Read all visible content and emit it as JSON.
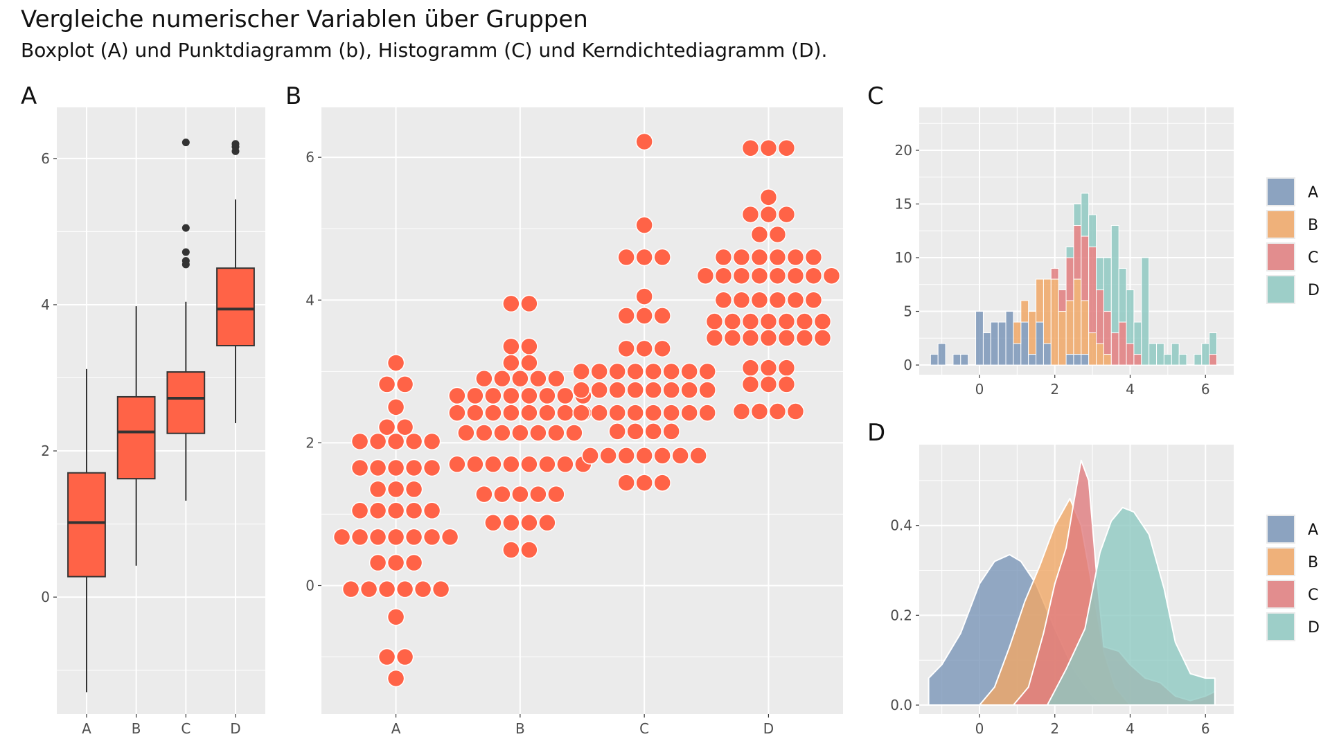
{
  "title": "Vergleiche numerischer Variablen über Gruppen",
  "subtitle": "Boxplot (A) und Punktdiagramm (b), Histogramm (C) und Kerndichtediagramm (D).",
  "colors": {
    "panel_bg": "#ebebeb",
    "grid": "#ffffff",
    "tomato": "#ff6347",
    "box_line": "#333333",
    "axis_text": "#4d4d4d",
    "groups": {
      "A": "#7b96b8",
      "B": "#f0a766",
      "C": "#e07c7e",
      "D": "#8fc9c2"
    }
  },
  "chart_data": [
    {
      "panel_tag": "A",
      "type": "box",
      "categories": [
        "A",
        "B",
        "C",
        "D"
      ],
      "ylim": [
        -1.6,
        6.7
      ],
      "yticks": [
        0,
        2,
        4,
        6
      ],
      "boxes": [
        {
          "group": "A",
          "whisker_low": -1.3,
          "q1": 0.28,
          "median": 1.02,
          "q3": 1.7,
          "whisker_high": 3.12,
          "outliers": []
        },
        {
          "group": "B",
          "whisker_low": 0.43,
          "q1": 1.62,
          "median": 2.26,
          "q3": 2.74,
          "whisker_high": 3.98,
          "outliers": []
        },
        {
          "group": "C",
          "whisker_low": 1.32,
          "q1": 2.24,
          "median": 2.72,
          "q3": 3.08,
          "whisker_high": 4.04,
          "outliers": [
            4.55,
            4.6,
            4.72,
            5.05,
            6.22
          ]
        },
        {
          "group": "D",
          "whisker_low": 2.38,
          "q1": 3.44,
          "median": 3.94,
          "q3": 4.5,
          "whisker_high": 5.44,
          "outliers": [
            6.1,
            6.16,
            6.2
          ]
        }
      ]
    },
    {
      "panel_tag": "B",
      "type": "scatter",
      "categories": [
        "A",
        "B",
        "C",
        "D"
      ],
      "ylim": [
        -1.8,
        6.7
      ],
      "yticks": [
        0,
        2,
        4,
        6
      ],
      "groups": [
        {
          "group": "A",
          "rows": [
            {
              "y": 3.12,
              "n": 1
            },
            {
              "y": 2.82,
              "n": 2
            },
            {
              "y": 2.5,
              "n": 1
            },
            {
              "y": 2.22,
              "n": 2
            },
            {
              "y": 2.02,
              "n": 5
            },
            {
              "y": 1.65,
              "n": 5
            },
            {
              "y": 1.35,
              "n": 3
            },
            {
              "y": 1.05,
              "n": 5
            },
            {
              "y": 0.68,
              "n": 7
            },
            {
              "y": 0.32,
              "n": 3
            },
            {
              "y": -0.05,
              "n": 6
            },
            {
              "y": -0.44,
              "n": 1
            },
            {
              "y": -1.0,
              "n": 2
            },
            {
              "y": -1.3,
              "n": 1
            }
          ]
        },
        {
          "group": "B",
          "rows": [
            {
              "y": 3.95,
              "n": 2
            },
            {
              "y": 3.35,
              "n": 2
            },
            {
              "y": 3.12,
              "n": 2
            },
            {
              "y": 2.9,
              "n": 5
            },
            {
              "y": 2.66,
              "n": 8
            },
            {
              "y": 2.42,
              "n": 8
            },
            {
              "y": 2.14,
              "n": 7
            },
            {
              "y": 1.7,
              "n": 8
            },
            {
              "y": 1.28,
              "n": 5
            },
            {
              "y": 0.88,
              "n": 4
            },
            {
              "y": 0.5,
              "n": 2
            }
          ]
        },
        {
          "group": "C",
          "rows": [
            {
              "y": 6.22,
              "n": 1
            },
            {
              "y": 5.05,
              "n": 1
            },
            {
              "y": 4.6,
              "n": 3
            },
            {
              "y": 4.05,
              "n": 1
            },
            {
              "y": 3.78,
              "n": 3
            },
            {
              "y": 3.32,
              "n": 3
            },
            {
              "y": 3.0,
              "n": 8
            },
            {
              "y": 2.74,
              "n": 8
            },
            {
              "y": 2.42,
              "n": 8
            },
            {
              "y": 2.16,
              "n": 4
            },
            {
              "y": 1.82,
              "n": 7
            },
            {
              "y": 1.44,
              "n": 3
            }
          ]
        },
        {
          "group": "D",
          "rows": [
            {
              "y": 6.13,
              "n": 3
            },
            {
              "y": 5.44,
              "n": 1
            },
            {
              "y": 5.2,
              "n": 3
            },
            {
              "y": 4.92,
              "n": 2
            },
            {
              "y": 4.6,
              "n": 6
            },
            {
              "y": 4.34,
              "n": 8
            },
            {
              "y": 4.0,
              "n": 6
            },
            {
              "y": 3.7,
              "n": 7
            },
            {
              "y": 3.47,
              "n": 7
            },
            {
              "y": 3.05,
              "n": 3
            },
            {
              "y": 2.82,
              "n": 3
            },
            {
              "y": 2.44,
              "n": 4
            }
          ]
        }
      ]
    },
    {
      "panel_tag": "C",
      "type": "bar",
      "stacked": true,
      "xlim": [
        -1.6,
        6.75
      ],
      "ylim": [
        -0.9,
        24
      ],
      "xticks": [
        0,
        2,
        4,
        6
      ],
      "yticks": [
        0,
        5,
        10,
        15,
        20
      ],
      "bin_width": 0.2,
      "bin_starts": [
        -1.3,
        -1.1,
        -0.9,
        -0.7,
        -0.5,
        -0.3,
        -0.1,
        0.1,
        0.3,
        0.5,
        0.7,
        0.9,
        1.1,
        1.3,
        1.5,
        1.7,
        1.9,
        2.1,
        2.3,
        2.5,
        2.7,
        2.9,
        3.1,
        3.3,
        3.5,
        3.7,
        3.9,
        4.1,
        4.3,
        4.5,
        4.7,
        4.9,
        5.1,
        5.3,
        5.5,
        5.7,
        5.9,
        6.1
      ],
      "series": [
        {
          "name": "A",
          "values": [
            1,
            2,
            0,
            1,
            1,
            0,
            5,
            3,
            4,
            4,
            5,
            2,
            4,
            1,
            4,
            2,
            0,
            0,
            1,
            1,
            1,
            0,
            0,
            0,
            0,
            0,
            0,
            0,
            0,
            0,
            0,
            0,
            0,
            0,
            0,
            0,
            0,
            0
          ]
        },
        {
          "name": "B",
          "values": [
            0,
            0,
            0,
            0,
            0,
            0,
            0,
            0,
            0,
            0,
            0,
            2,
            2,
            4,
            4,
            6,
            8,
            5,
            5,
            7,
            5,
            3,
            2,
            1,
            0,
            0,
            0,
            0,
            0,
            0,
            0,
            0,
            0,
            0,
            0,
            0,
            0,
            0
          ]
        },
        {
          "name": "C",
          "values": [
            0,
            0,
            0,
            0,
            0,
            0,
            0,
            0,
            0,
            0,
            0,
            0,
            0,
            0,
            0,
            0,
            1,
            2,
            4,
            5,
            6,
            8,
            5,
            4,
            3,
            4,
            2,
            1,
            0,
            0,
            0,
            0,
            0,
            0,
            0,
            0,
            0,
            1
          ]
        },
        {
          "name": "D",
          "values": [
            0,
            0,
            0,
            0,
            0,
            0,
            0,
            0,
            0,
            0,
            0,
            0,
            0,
            0,
            0,
            0,
            0,
            0,
            1,
            2,
            4,
            3,
            3,
            5,
            10,
            5,
            5,
            3,
            10,
            2,
            2,
            1,
            2,
            1,
            0,
            1,
            2,
            2
          ]
        }
      ],
      "legend": [
        "A",
        "B",
        "C",
        "D"
      ]
    },
    {
      "panel_tag": "D",
      "type": "area",
      "xlim": [
        -1.6,
        6.75
      ],
      "ylim": [
        -0.02,
        0.58
      ],
      "xticks": [
        0,
        2,
        4,
        6
      ],
      "yticks": [
        0.0,
        0.2,
        0.4
      ],
      "ytick_labels": [
        "0.0",
        "0.2",
        "0.4"
      ],
      "series": [
        {
          "name": "A",
          "x": [
            -1.35,
            -1.0,
            -0.5,
            0.0,
            0.4,
            0.8,
            1.1,
            1.5,
            2.0,
            2.5,
            3.0,
            3.3
          ],
          "y": [
            0.06,
            0.09,
            0.16,
            0.27,
            0.32,
            0.335,
            0.32,
            0.27,
            0.17,
            0.08,
            0.02,
            0.0
          ]
        },
        {
          "name": "B",
          "x": [
            0.0,
            0.4,
            0.8,
            1.2,
            1.6,
            2.0,
            2.4,
            2.7,
            3.0,
            3.3,
            3.6,
            4.0
          ],
          "y": [
            0.0,
            0.04,
            0.13,
            0.23,
            0.31,
            0.4,
            0.46,
            0.4,
            0.26,
            0.12,
            0.04,
            0.0
          ]
        },
        {
          "name": "C",
          "x": [
            0.9,
            1.3,
            1.7,
            2.0,
            2.3,
            2.5,
            2.7,
            2.9,
            3.1,
            3.3,
            3.7,
            4.0,
            4.4,
            4.8,
            5.2,
            5.6,
            6.0,
            6.25
          ],
          "y": [
            0.0,
            0.04,
            0.16,
            0.27,
            0.35,
            0.45,
            0.545,
            0.5,
            0.3,
            0.13,
            0.12,
            0.09,
            0.06,
            0.05,
            0.02,
            0.01,
            0.02,
            0.03
          ]
        },
        {
          "name": "D",
          "x": [
            1.8,
            2.3,
            2.8,
            3.2,
            3.5,
            3.8,
            4.1,
            4.5,
            4.9,
            5.2,
            5.6,
            6.0,
            6.25
          ],
          "y": [
            0.0,
            0.08,
            0.17,
            0.34,
            0.41,
            0.44,
            0.43,
            0.38,
            0.26,
            0.14,
            0.07,
            0.06,
            0.06
          ]
        }
      ],
      "legend": [
        "A",
        "B",
        "C",
        "D"
      ]
    }
  ]
}
